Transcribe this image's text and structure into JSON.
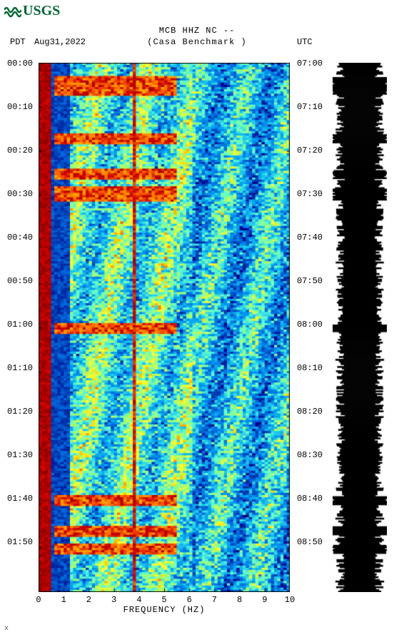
{
  "logo": {
    "text": "USGS",
    "color": "#006633"
  },
  "header": {
    "line1": "MCB HHZ NC --",
    "line2": "(Casa Benchmark )",
    "left_tz": "PDT",
    "date": "Aug31,2022",
    "right_tz": "UTC",
    "fontsize": 12
  },
  "spectrogram": {
    "type": "heatmap",
    "x_label": "FREQUENCY (HZ)",
    "x_min": 0,
    "x_max": 10,
    "x_ticks": [
      0,
      1,
      2,
      3,
      4,
      5,
      6,
      7,
      8,
      9,
      10
    ],
    "y_left_ticks": [
      "00:00",
      "00:10",
      "00:20",
      "00:30",
      "00:40",
      "00:50",
      "01:00",
      "01:10",
      "01:20",
      "01:30",
      "01:40",
      "01:50"
    ],
    "y_right_ticks": [
      "07:00",
      "07:10",
      "07:20",
      "07:30",
      "07:40",
      "07:50",
      "08:00",
      "08:10",
      "08:20",
      "08:30",
      "08:40",
      "08:50"
    ],
    "plot_bg": "#ffffff",
    "tick_fontsize": 12,
    "label_fontsize": 12,
    "colors": {
      "c0": "#00008b",
      "c1": "#0033aa",
      "c2": "#0066dd",
      "c3": "#0099ee",
      "c4": "#22ccee",
      "c5": "#66ffcc",
      "c6": "#aaff66",
      "c7": "#ffff33",
      "c8": "#ffcc00",
      "c9": "#ff6600",
      "c10": "#cc0000",
      "c11": "#8b0000"
    },
    "seed": 20220831,
    "ncols": 80,
    "nrows": 240,
    "low_band_end_col": 10,
    "mid_spike_col": 30,
    "events_rows": [
      8,
      12,
      34,
      50,
      58,
      60,
      120,
      198,
      212,
      220
    ]
  },
  "waveform": {
    "color": "#000000",
    "bg": "#ffffff",
    "nrows": 370,
    "base_amp": 0.55,
    "events_rows": [
      8,
      12,
      34,
      50,
      58,
      60,
      120,
      198,
      212,
      220
    ]
  },
  "footer_mark": "x"
}
